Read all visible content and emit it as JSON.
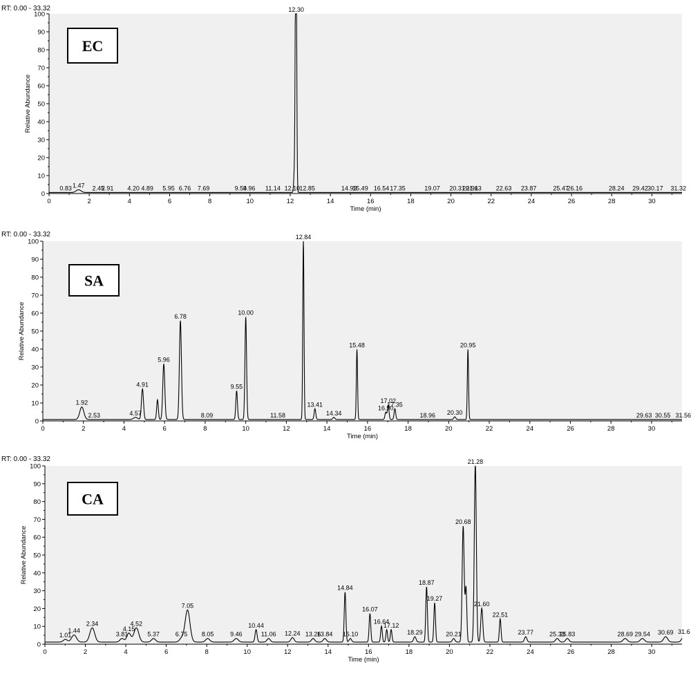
{
  "chart_data": [
    {
      "type": "line",
      "panel_label": "EC",
      "rt_range_label": "RT: 0.00 - 33.32",
      "xlabel": "Time (min)",
      "ylabel": "Relative Abundance",
      "xlim": [
        0,
        31.5
      ],
      "ylim": [
        0,
        100
      ],
      "x_ticks": [
        0,
        2,
        4,
        6,
        8,
        10,
        12,
        14,
        16,
        18,
        20,
        22,
        24,
        26,
        28,
        30
      ],
      "y_ticks": [
        0,
        10,
        20,
        30,
        40,
        50,
        60,
        70,
        80,
        90,
        100
      ],
      "baseline": 0.6,
      "peaks": [
        {
          "rt": 1.47,
          "height": 1.5,
          "label": "1.47",
          "width": 0.12
        },
        {
          "rt": 12.3,
          "height": 100,
          "label": "12.30",
          "width": 0.03
        },
        {
          "rt": 12.27,
          "height": 84,
          "label": "",
          "width": 0.03
        },
        {
          "rt": 12.2,
          "height": 9,
          "label": "",
          "width": 0.03
        }
      ],
      "annotations": [
        {
          "rt": 0.83,
          "label": "0.83"
        },
        {
          "rt": 2.45,
          "label": "2.45"
        },
        {
          "rt": 2.91,
          "label": "2.91"
        },
        {
          "rt": 4.2,
          "label": "4.20"
        },
        {
          "rt": 4.89,
          "label": "4.89"
        },
        {
          "rt": 5.95,
          "label": "5.95"
        },
        {
          "rt": 6.76,
          "label": "6.76"
        },
        {
          "rt": 7.69,
          "label": "7.69"
        },
        {
          "rt": 9.54,
          "label": "9.54"
        },
        {
          "rt": 9.96,
          "label": "9.96"
        },
        {
          "rt": 11.14,
          "label": "11.14"
        },
        {
          "rt": 12.1,
          "label": "12.10"
        },
        {
          "rt": 12.85,
          "label": "12.85"
        },
        {
          "rt": 14.93,
          "label": "14.93"
        },
        {
          "rt": 15.49,
          "label": "15.49"
        },
        {
          "rt": 16.54,
          "label": "16.54"
        },
        {
          "rt": 17.35,
          "label": "17.35"
        },
        {
          "rt": 19.07,
          "label": "19.07"
        },
        {
          "rt": 20.31,
          "label": "20.31"
        },
        {
          "rt": 20.96,
          "label": "20.96"
        },
        {
          "rt": 21.13,
          "label": "21.13"
        },
        {
          "rt": 22.63,
          "label": "22.63"
        },
        {
          "rt": 23.87,
          "label": "23.87"
        },
        {
          "rt": 25.47,
          "label": "25.47"
        },
        {
          "rt": 26.16,
          "label": "26.16"
        },
        {
          "rt": 28.24,
          "label": "28.24"
        },
        {
          "rt": 29.42,
          "label": "29.42"
        },
        {
          "rt": 30.17,
          "label": "30.17"
        },
        {
          "rt": 31.32,
          "label": "31.32"
        }
      ]
    },
    {
      "type": "line",
      "panel_label": "SA",
      "rt_range_label": "RT: 0.00 - 33.32",
      "xlabel": "Time (min)",
      "ylabel": "Relative Abundance",
      "xlim": [
        0,
        31.5
      ],
      "ylim": [
        0,
        100
      ],
      "x_ticks": [
        0,
        2,
        4,
        6,
        8,
        10,
        12,
        14,
        16,
        18,
        20,
        22,
        24,
        26,
        28,
        30
      ],
      "y_ticks": [
        0,
        10,
        20,
        30,
        40,
        50,
        60,
        70,
        80,
        90,
        100
      ],
      "baseline": 0.8,
      "peaks": [
        {
          "rt": 1.92,
          "height": 7,
          "label": "1.92",
          "width": 0.1
        },
        {
          "rt": 4.57,
          "height": 1.2,
          "label": "4.57",
          "width": 0.1
        },
        {
          "rt": 4.91,
          "height": 17,
          "label": "4.91",
          "width": 0.05
        },
        {
          "rt": 5.65,
          "height": 11,
          "label": "",
          "width": 0.04
        },
        {
          "rt": 5.96,
          "height": 31,
          "label": "5.96",
          "width": 0.05
        },
        {
          "rt": 6.78,
          "height": 55,
          "label": "6.78",
          "width": 0.05
        },
        {
          "rt": 9.55,
          "height": 16,
          "label": "9.55",
          "width": 0.04
        },
        {
          "rt": 10.0,
          "height": 57,
          "label": "10.00",
          "width": 0.04
        },
        {
          "rt": 12.84,
          "height": 100,
          "label": "12.84",
          "width": 0.03
        },
        {
          "rt": 13.41,
          "height": 6,
          "label": "13.41",
          "width": 0.04
        },
        {
          "rt": 14.34,
          "height": 1.2,
          "label": "14.34",
          "width": 0.05
        },
        {
          "rt": 15.48,
          "height": 39,
          "label": "15.48",
          "width": 0.03
        },
        {
          "rt": 16.9,
          "height": 4,
          "label": "16.90",
          "width": 0.04
        },
        {
          "rt": 17.02,
          "height": 8,
          "label": "17.02",
          "width": 0.04
        },
        {
          "rt": 17.35,
          "height": 6,
          "label": "17.35",
          "width": 0.04
        },
        {
          "rt": 20.3,
          "height": 1.5,
          "label": "20.30",
          "width": 0.05
        },
        {
          "rt": 20.95,
          "height": 39,
          "label": "20.95",
          "width": 0.03
        }
      ],
      "annotations": [
        {
          "rt": 2.53,
          "label": "2.53"
        },
        {
          "rt": 8.09,
          "label": "8.09"
        },
        {
          "rt": 11.58,
          "label": "11.58"
        },
        {
          "rt": 18.96,
          "label": "18.96"
        },
        {
          "rt": 29.63,
          "label": "29.63"
        },
        {
          "rt": 30.55,
          "label": "30.55"
        },
        {
          "rt": 31.56,
          "label": "31.56"
        }
      ]
    },
    {
      "type": "line",
      "panel_label": "CA",
      "rt_range_label": "RT: 0.00 - 33.32",
      "xlabel": "Time (min)",
      "ylabel": "Relative Abundance",
      "xlim": [
        0,
        31.5
      ],
      "ylim": [
        0,
        100
      ],
      "x_ticks": [
        0,
        2,
        4,
        6,
        8,
        10,
        12,
        14,
        16,
        18,
        20,
        22,
        24,
        26,
        28,
        30
      ],
      "y_ticks": [
        0,
        10,
        20,
        30,
        40,
        50,
        60,
        70,
        80,
        90,
        100
      ],
      "baseline": 1.2,
      "peaks": [
        {
          "rt": 1.01,
          "height": 1.5,
          "label": "1.01",
          "width": 0.1
        },
        {
          "rt": 1.44,
          "height": 4,
          "label": "1.44",
          "width": 0.12
        },
        {
          "rt": 2.34,
          "height": 8,
          "label": "2.34",
          "width": 0.12
        },
        {
          "rt": 3.81,
          "height": 2,
          "label": "3.81",
          "width": 0.1
        },
        {
          "rt": 4.15,
          "height": 5,
          "label": "4.15",
          "width": 0.1
        },
        {
          "rt": 4.52,
          "height": 8,
          "label": "4.52",
          "width": 0.12
        },
        {
          "rt": 5.37,
          "height": 2,
          "label": "5.37",
          "width": 0.1
        },
        {
          "rt": 6.75,
          "height": 2,
          "label": "6.75",
          "width": 0.1
        },
        {
          "rt": 7.05,
          "height": 18,
          "label": "7.05",
          "width": 0.12
        },
        {
          "rt": 8.05,
          "height": 2,
          "label": "8.05",
          "width": 0.1
        },
        {
          "rt": 9.46,
          "height": 2,
          "label": "9.46",
          "width": 0.1
        },
        {
          "rt": 10.44,
          "height": 7,
          "label": "10.44",
          "width": 0.05
        },
        {
          "rt": 11.06,
          "height": 2,
          "label": "11.06",
          "width": 0.08
        },
        {
          "rt": 12.24,
          "height": 2.5,
          "label": "12.24",
          "width": 0.08
        },
        {
          "rt": 13.26,
          "height": 2,
          "label": "13.26",
          "width": 0.08
        },
        {
          "rt": 13.84,
          "height": 2,
          "label": "13.84",
          "width": 0.08
        },
        {
          "rt": 14.84,
          "height": 28,
          "label": "14.84",
          "width": 0.04
        },
        {
          "rt": 15.1,
          "height": 2,
          "label": "15.10",
          "width": 0.06
        },
        {
          "rt": 16.07,
          "height": 16,
          "label": "16.07",
          "width": 0.04
        },
        {
          "rt": 16.64,
          "height": 9,
          "label": "16.64",
          "width": 0.04
        },
        {
          "rt": 16.9,
          "height": 7,
          "label": "",
          "width": 0.04
        },
        {
          "rt": 17.12,
          "height": 7,
          "label": "17.12",
          "width": 0.04
        },
        {
          "rt": 18.29,
          "height": 3,
          "label": "18.29",
          "width": 0.06
        },
        {
          "rt": 18.87,
          "height": 31,
          "label": "18.87",
          "width": 0.04
        },
        {
          "rt": 19.27,
          "height": 22,
          "label": "19.27",
          "width": 0.04
        },
        {
          "rt": 20.21,
          "height": 2,
          "label": "20.21",
          "width": 0.06
        },
        {
          "rt": 20.68,
          "height": 65,
          "label": "20.68",
          "width": 0.05
        },
        {
          "rt": 20.82,
          "height": 30,
          "label": "",
          "width": 0.04
        },
        {
          "rt": 21.28,
          "height": 100,
          "label": "21.28",
          "width": 0.05
        },
        {
          "rt": 21.6,
          "height": 19,
          "label": "21.60",
          "width": 0.05
        },
        {
          "rt": 22.51,
          "height": 13,
          "label": "22.51",
          "width": 0.04
        },
        {
          "rt": 23.77,
          "height": 3,
          "label": "23.77",
          "width": 0.06
        },
        {
          "rt": 25.33,
          "height": 2,
          "label": "25.33",
          "width": 0.08
        },
        {
          "rt": 25.83,
          "height": 2,
          "label": "25.83",
          "width": 0.08
        },
        {
          "rt": 28.69,
          "height": 2,
          "label": "28.69",
          "width": 0.1
        },
        {
          "rt": 29.54,
          "height": 2,
          "label": "29.54",
          "width": 0.1
        },
        {
          "rt": 30.69,
          "height": 3,
          "label": "30.69",
          "width": 0.1
        },
        {
          "rt": 31.6,
          "height": 3.5,
          "label": "31.6",
          "width": 0.1
        }
      ],
      "annotations": []
    }
  ]
}
